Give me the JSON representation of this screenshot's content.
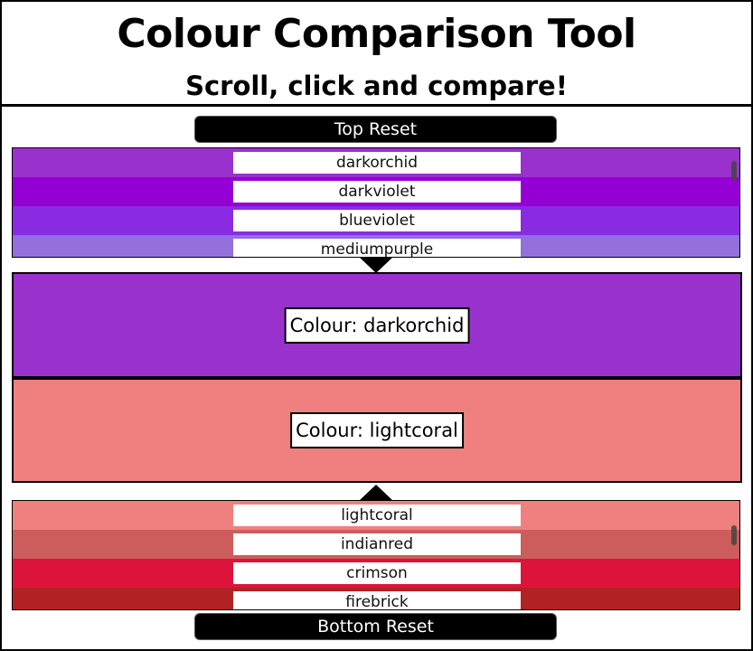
{
  "header": {
    "title": "Colour Comparison Tool",
    "subtitle": "Scroll, click and compare!"
  },
  "top_reset_label": "Top Reset",
  "bottom_reset_label": "Bottom Reset",
  "top_list": {
    "items": [
      {
        "name": "darkorchid",
        "color": "#9932cc"
      },
      {
        "name": "darkviolet",
        "color": "#9400d3"
      },
      {
        "name": "blueviolet",
        "color": "#8a2be2"
      },
      {
        "name": "mediumpurple",
        "color": "#9370db"
      }
    ]
  },
  "bottom_list": {
    "items": [
      {
        "name": "lightcoral",
        "color": "#f08080"
      },
      {
        "name": "indianred",
        "color": "#cd5c5c"
      },
      {
        "name": "crimson",
        "color": "#dc143c"
      },
      {
        "name": "firebrick",
        "color": "#b22222"
      }
    ]
  },
  "compare": {
    "top": {
      "label": "Colour: darkorchid",
      "color": "#9932cc"
    },
    "bottom": {
      "label": "Colour: lightcoral",
      "color": "#f08080"
    }
  }
}
